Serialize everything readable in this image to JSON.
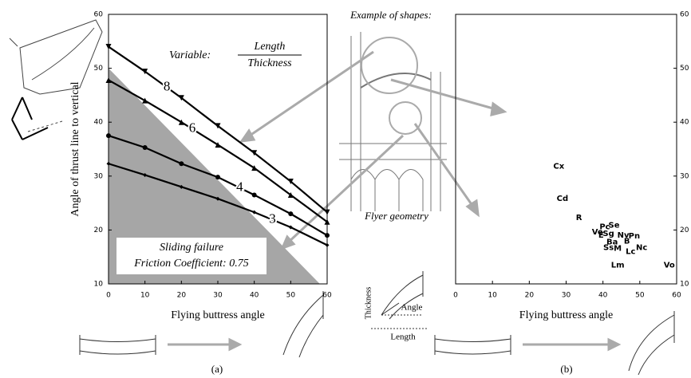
{
  "chart_data": [
    {
      "type": "line",
      "ylabel": "Angle of thrust line to vertical",
      "xlabel": "Flying buttress angle",
      "x": [
        0,
        10,
        20,
        30,
        40,
        50,
        60
      ],
      "series": [
        {
          "name": "8",
          "color": "#000000",
          "marker": "triangle-down",
          "values": [
            54,
            49.4,
            44.5,
            39.3,
            34.3,
            29,
            23.3
          ]
        },
        {
          "name": "6",
          "color": "#000000",
          "marker": "triangle-up",
          "values": [
            47.8,
            44,
            40,
            35.8,
            31.5,
            26.5,
            21.5
          ]
        },
        {
          "name": "4",
          "color": "#000000",
          "marker": "circle",
          "values": [
            37.5,
            35.3,
            32.3,
            29.8,
            26.5,
            23,
            19
          ]
        },
        {
          "name": "3",
          "color": "#000000",
          "marker": "diamond",
          "values": [
            32.3,
            30.2,
            28,
            25.8,
            23.3,
            20.5,
            17.2
          ]
        }
      ],
      "variable": {
        "prefix": "Variable:",
        "numerator": "Length",
        "denominator": "Thickness"
      },
      "region": {
        "label": "Sliding failure",
        "sublabel": "Friction Coefficient: 0.75",
        "color": "#a6a6a6",
        "x": [
          0,
          0,
          58
        ],
        "y": [
          10,
          50,
          10
        ]
      },
      "xlim": [
        0,
        60
      ],
      "ylim": [
        10,
        60
      ],
      "xticks": [
        0,
        10,
        20,
        30,
        40,
        50,
        60
      ],
      "yticks": [
        10,
        20,
        30,
        40,
        50,
        60
      ]
    },
    {
      "type": "scatter",
      "xlabel": "Flying buttress angle",
      "labels": [
        "Cx",
        "Cd",
        "R",
        "Pc",
        "Se",
        "Ve",
        "E",
        "Sg",
        "Nv",
        "Pn",
        "Ba",
        "B",
        "Ss",
        "M",
        "Lc",
        "Nc",
        "Lm",
        "Vo"
      ],
      "x": [
        28,
        29,
        33.5,
        40.5,
        43,
        38.5,
        39.5,
        41.5,
        45.5,
        48.5,
        42.5,
        46.5,
        41.5,
        44,
        47.5,
        50.5,
        44,
        58
      ],
      "y": [
        31.8,
        25.8,
        22.3,
        20.6,
        20.9,
        19.6,
        19,
        19.3,
        19,
        18.9,
        17.8,
        17.9,
        16.7,
        16.6,
        16,
        16.7,
        13.5,
        13.5
      ],
      "xlim": [
        0,
        60
      ],
      "ylim": [
        10,
        60
      ],
      "xticks": [
        0,
        10,
        20,
        30,
        40,
        50,
        60
      ],
      "yticks": [
        10,
        20,
        30,
        40,
        50,
        60
      ]
    }
  ],
  "illustration": {
    "title": "Example of shapes:",
    "caption": "Flyer geometry",
    "thickness": "Thickness",
    "angle": "Angle",
    "length": "Length"
  },
  "panel_labels": [
    "(a)",
    "(b)"
  ]
}
